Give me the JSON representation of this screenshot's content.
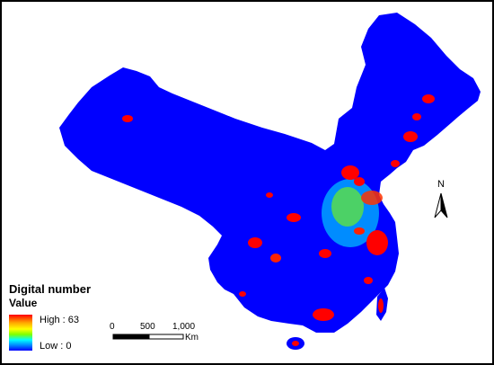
{
  "legend": {
    "title": "Digital number",
    "subtitle": "Value",
    "high_label": "High : 63",
    "low_label": "Low : 0",
    "ramp_colors": [
      "#ff0000",
      "#ffa500",
      "#ffff00",
      "#7fff00",
      "#00ffff",
      "#0088ff",
      "#0000ff"
    ]
  },
  "scale_bar": {
    "ticks": [
      "0",
      "500",
      "1,000"
    ],
    "unit": "Km"
  },
  "north_arrow": {
    "label": "N"
  },
  "colors": {
    "background_land": "#0000ff",
    "high": "#ff0000",
    "mid": "#00ffff",
    "low": "#0000ff"
  }
}
